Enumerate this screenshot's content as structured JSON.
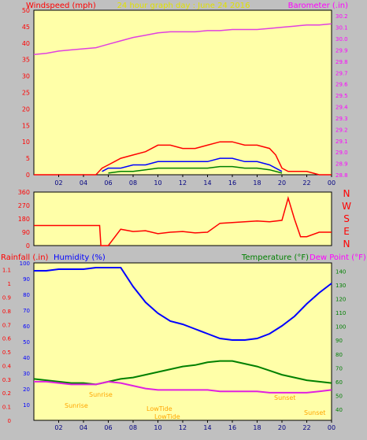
{
  "header": {
    "title": "24 hour graph day : June 24 2016",
    "left_label": "Windspeed (mph)",
    "right_label": "Barometer (.in)"
  },
  "colors": {
    "background": "#c0c0c0",
    "plot_bg": "#ffffa8",
    "wind": "#ff0000",
    "gust_mid": "#0000ff",
    "gust_low": "#008000",
    "barometer": "#e040e0",
    "humidity": "#0000ff",
    "temperature": "#008000",
    "dewpoint": "#e020e0",
    "rain": "#ff0000",
    "sun": "#ffa500"
  },
  "x_ticks": [
    "02",
    "04",
    "06",
    "08",
    "10",
    "12",
    "14",
    "16",
    "18",
    "20",
    "22",
    "00"
  ],
  "compass": [
    "N",
    "W",
    "S",
    "E",
    "N"
  ],
  "bottom_labels": {
    "rainfall": "Rainfall (.in)",
    "humidity": "Humidity (%)",
    "temperature": "Temperature (°F)",
    "dewpoint": "Dew Point (°F)"
  },
  "annotations": {
    "sunrise_left": "Sunrise",
    "sunrise": "Sunrise",
    "sunset": "Sunset",
    "sunset_right": "Sunset",
    "lowtide": "LowTide",
    "lowtide_low": "LowTide"
  },
  "chart_data": [
    {
      "type": "line",
      "panel": "wind-barometer",
      "title": "24 hour graph day : June 24 2016",
      "ylabel": "Windspeed (mph)",
      "y2label": "Barometer (.in)",
      "xlim": [
        0,
        24
      ],
      "ylim": [
        0,
        50
      ],
      "y_ticks": [
        0,
        5,
        10,
        15,
        20,
        25,
        30,
        35,
        40,
        45,
        50
      ],
      "y2lim": [
        28.8,
        30.25
      ],
      "y2_ticks": [
        28.8,
        28.9,
        29.0,
        29.1,
        29.2,
        29.3,
        29.4,
        29.5,
        29.6,
        29.7,
        29.8,
        29.9,
        30.0,
        30.1,
        30.2
      ],
      "series": [
        {
          "axis": "y2",
          "x": [
            0,
            1,
            2,
            3,
            4,
            5,
            6,
            7,
            8,
            9,
            10,
            11,
            12,
            13,
            14,
            15,
            16,
            17,
            18,
            19,
            20,
            21,
            22,
            23,
            24
          ],
          "values": [
            29.86,
            29.87,
            29.89,
            29.9,
            29.91,
            29.92,
            29.95,
            29.98,
            30.01,
            30.03,
            30.05,
            30.06,
            30.06,
            30.06,
            30.07,
            30.07,
            30.08,
            30.08,
            30.08,
            30.09,
            30.1,
            30.11,
            30.12,
            30.12,
            30.13
          ]
        },
        {
          "x": [
            0,
            1,
            2,
            3,
            4,
            5,
            5.5,
            6,
            6.5,
            7,
            8,
            9,
            10,
            11,
            12,
            13,
            14,
            15,
            16,
            17,
            18,
            19,
            19.5,
            20,
            20.5,
            21,
            22,
            23,
            24
          ],
          "values": [
            0,
            0,
            0,
            0,
            0,
            0,
            2,
            3,
            4,
            5,
            6,
            7,
            9,
            9,
            8,
            8,
            9,
            10,
            10,
            9,
            9,
            8,
            6,
            2,
            1,
            1,
            1,
            0,
            0
          ]
        },
        {
          "x": [
            5.5,
            6,
            7,
            8,
            9,
            10,
            11,
            12,
            13,
            14,
            15,
            16,
            17,
            18,
            19,
            20
          ],
          "values": [
            1,
            2,
            2,
            3,
            3,
            4,
            4,
            4,
            4,
            4,
            5,
            5,
            4,
            4,
            3,
            1
          ]
        },
        {
          "x": [
            6,
            7,
            8,
            9,
            10,
            11,
            12,
            13,
            14,
            15,
            16,
            17,
            18,
            19,
            20
          ],
          "values": [
            0.5,
            1,
            1,
            1.5,
            2,
            2,
            2,
            2,
            2,
            2.5,
            2.5,
            2,
            2,
            1.5,
            0.5
          ]
        }
      ]
    },
    {
      "type": "line",
      "panel": "wind-direction",
      "xlim": [
        0,
        24
      ],
      "ylim": [
        0,
        360
      ],
      "y_ticks": [
        0,
        90,
        180,
        270,
        360
      ],
      "x": [
        0,
        4,
        5.3,
        5.4,
        6,
        7,
        8,
        9,
        10,
        11,
        12,
        13,
        14,
        15,
        16,
        17,
        18,
        19,
        20,
        20.5,
        21,
        21.5,
        22,
        23,
        24
      ],
      "values": [
        135,
        135,
        135,
        0,
        0,
        110,
        95,
        100,
        80,
        90,
        95,
        85,
        90,
        150,
        155,
        160,
        165,
        160,
        170,
        320,
        180,
        60,
        60,
        90,
        90
      ]
    },
    {
      "type": "line",
      "panel": "humidity-temperature",
      "xlim": [
        0,
        24
      ],
      "y_ticks_rain": [
        0,
        0.1,
        0.2,
        0.3,
        0.4,
        0.5,
        0.6,
        0.7,
        0.8,
        0.9,
        1,
        1.1
      ],
      "y_ticks_humidity": [
        10,
        20,
        30,
        40,
        50,
        60,
        70,
        80,
        90,
        100
      ],
      "y_ticks_temperature": [
        40,
        50,
        60,
        70,
        80,
        90,
        100,
        110,
        120,
        130,
        140
      ],
      "rainlim": [
        0,
        1.15
      ],
      "humiditylim": [
        0,
        100
      ],
      "templim": [
        32,
        146
      ],
      "series": [
        {
          "name": "Humidity (%)",
          "x": [
            0,
            1,
            2,
            3,
            4,
            5,
            6,
            7,
            8,
            9,
            10,
            11,
            12,
            13,
            14,
            15,
            16,
            17,
            18,
            19,
            20,
            21,
            22,
            23,
            24
          ],
          "values": [
            95,
            95,
            96,
            96,
            96,
            97,
            97,
            97,
            85,
            75,
            68,
            63,
            61,
            58,
            55,
            52,
            51,
            51,
            52,
            55,
            60,
            66,
            74,
            81,
            87
          ]
        },
        {
          "name": "Temperature (°F)",
          "x": [
            0,
            1,
            2,
            3,
            4,
            5,
            6,
            7,
            8,
            9,
            10,
            11,
            12,
            13,
            14,
            15,
            16,
            17,
            18,
            19,
            20,
            21,
            22,
            23,
            24
          ],
          "values": [
            62,
            61,
            60,
            59,
            59,
            58,
            60,
            62,
            63,
            65,
            67,
            69,
            71,
            72,
            74,
            75,
            75,
            73,
            71,
            68,
            65,
            63,
            61,
            60,
            59
          ]
        },
        {
          "name": "Dew Point (°F)",
          "x": [
            0,
            1,
            2,
            3,
            4,
            5,
            6,
            7,
            8,
            9,
            10,
            11,
            12,
            13,
            14,
            15,
            16,
            17,
            18,
            19,
            20,
            21,
            22,
            23,
            24
          ],
          "values": [
            60,
            60,
            59,
            58,
            58,
            58,
            60,
            59,
            57,
            55,
            54,
            54,
            54,
            54,
            54,
            53,
            53,
            53,
            53,
            52,
            52,
            52,
            52,
            53,
            54
          ]
        }
      ]
    }
  ]
}
